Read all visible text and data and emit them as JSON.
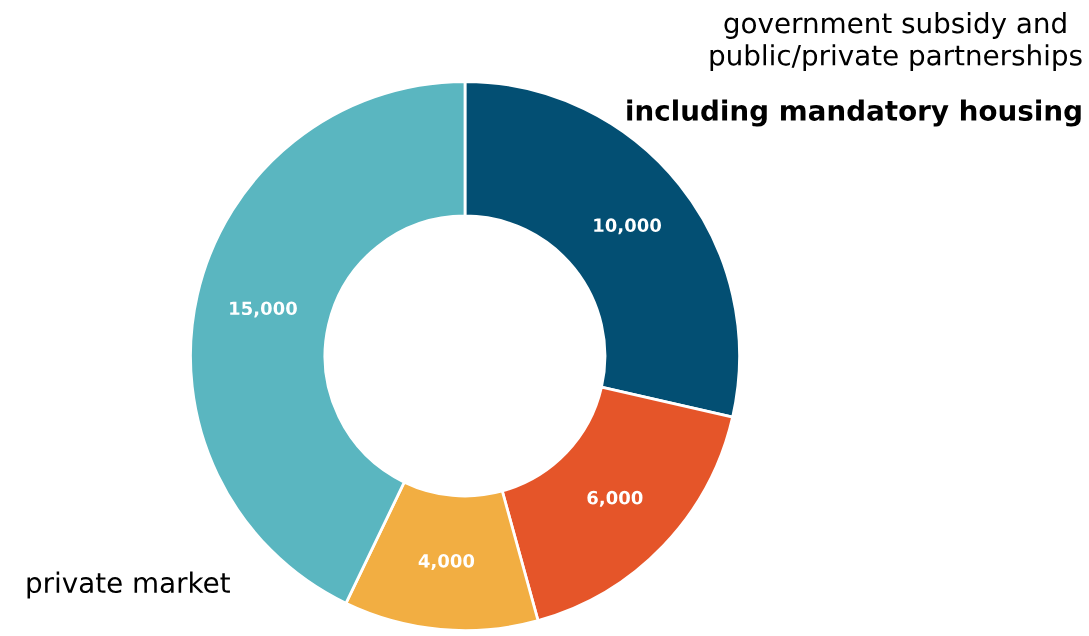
{
  "chart_data": {
    "type": "donut",
    "categories": [
      null,
      null,
      null,
      null
    ],
    "values": [
      10000,
      6000,
      4000,
      15000
    ],
    "value_labels": [
      "10,000",
      "6,000",
      "4,000",
      "15,000"
    ],
    "colors": [
      "#034f73",
      "#e55529",
      "#f2ae42",
      "#5ab6c0"
    ],
    "annotations": [
      "government subsidy and\npublic/private partnerships",
      "including mandatory housing",
      "private market"
    ],
    "legend": false
  }
}
